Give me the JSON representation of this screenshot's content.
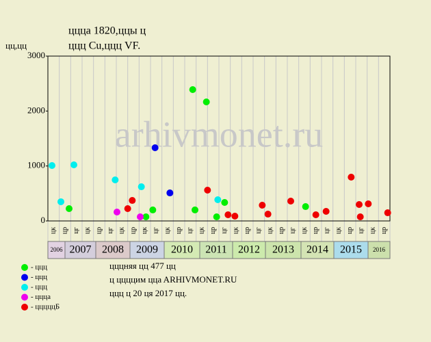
{
  "chart_data": {
    "type": "scatter",
    "title": "цццa 1820,ццы ц",
    "subtitle": "ццц Cu,ццц VF.",
    "y_label": "цц,цц",
    "watermark": "arhivmonet.ru",
    "xlim": [
      0,
      30
    ],
    "ylim": [
      0,
      3000
    ],
    "yticks": [
      0,
      1000,
      2000,
      3000
    ],
    "grid": true,
    "categories": [
      "цк",
      "цр",
      "цг",
      "цк",
      "цр",
      "цг",
      "цк",
      "цр",
      "цк",
      "цг",
      "цк",
      "цр",
      "цг",
      "цк",
      "цр",
      "цг",
      "цк",
      "цр",
      "цг",
      "цк",
      "цр",
      "цг",
      "цк",
      "цр",
      "цг",
      "цк",
      "цр",
      "цг",
      "цк",
      "цр"
    ],
    "years": [
      "2006",
      "2007",
      "2008",
      "2009",
      "2010",
      "2011",
      "2012",
      "2013",
      "2014",
      "2015",
      "2016"
    ],
    "year_colors": [
      "#e2d2e2",
      "#d4cedc",
      "#dccaca",
      "#ccd4e4",
      "#d4eab4",
      "#cce4b4",
      "#cceaac",
      "#cce4ac",
      "#d4e4b4",
      "#acdcec",
      "#cce0ac"
    ],
    "series": [
      {
        "name": "- ццц",
        "color": "#00ee00",
        "x": [
          1.86,
          12.7,
          13.9,
          12.9,
          8.6,
          9.2,
          14.8,
          15.5,
          22.6
        ],
        "values": [
          224,
          2390,
          2166,
          200,
          75,
          200,
          75,
          336,
          261
        ]
      },
      {
        "name": "- ццц",
        "color": "#0000ee",
        "x": [
          9.4,
          10.7
        ],
        "values": [
          1332,
          510
        ]
      },
      {
        "name": "- ццц",
        "color": "#00eeee",
        "x": [
          0.36,
          1.14,
          2.28,
          5.9,
          8.2,
          14.9
        ],
        "values": [
          1008,
          349,
          1021,
          747,
          622,
          386
        ]
      },
      {
        "name": "- ццца",
        "color": "#ee00ee",
        "x": [
          6.06,
          8.1
        ],
        "values": [
          162,
          75
        ]
      },
      {
        "name": "- цццццБ",
        "color": "#ee0000",
        "x": [
          7.0,
          7.4,
          14.0,
          15.8,
          16.4,
          18.8,
          19.3,
          21.3,
          23.5,
          24.4,
          26.6,
          27.3,
          27.4,
          28.1,
          29.8
        ],
        "values": [
          224,
          373,
          560,
          112,
          87,
          286,
          124,
          361,
          112,
          174,
          797,
          299,
          75,
          311,
          149
        ]
      }
    ],
    "notes": [
      "цццняя цц 477 цц",
      "ц ццццим ццa ARHIVMONET.RU",
      "ццц ц 20 ця 2017 цц."
    ]
  }
}
